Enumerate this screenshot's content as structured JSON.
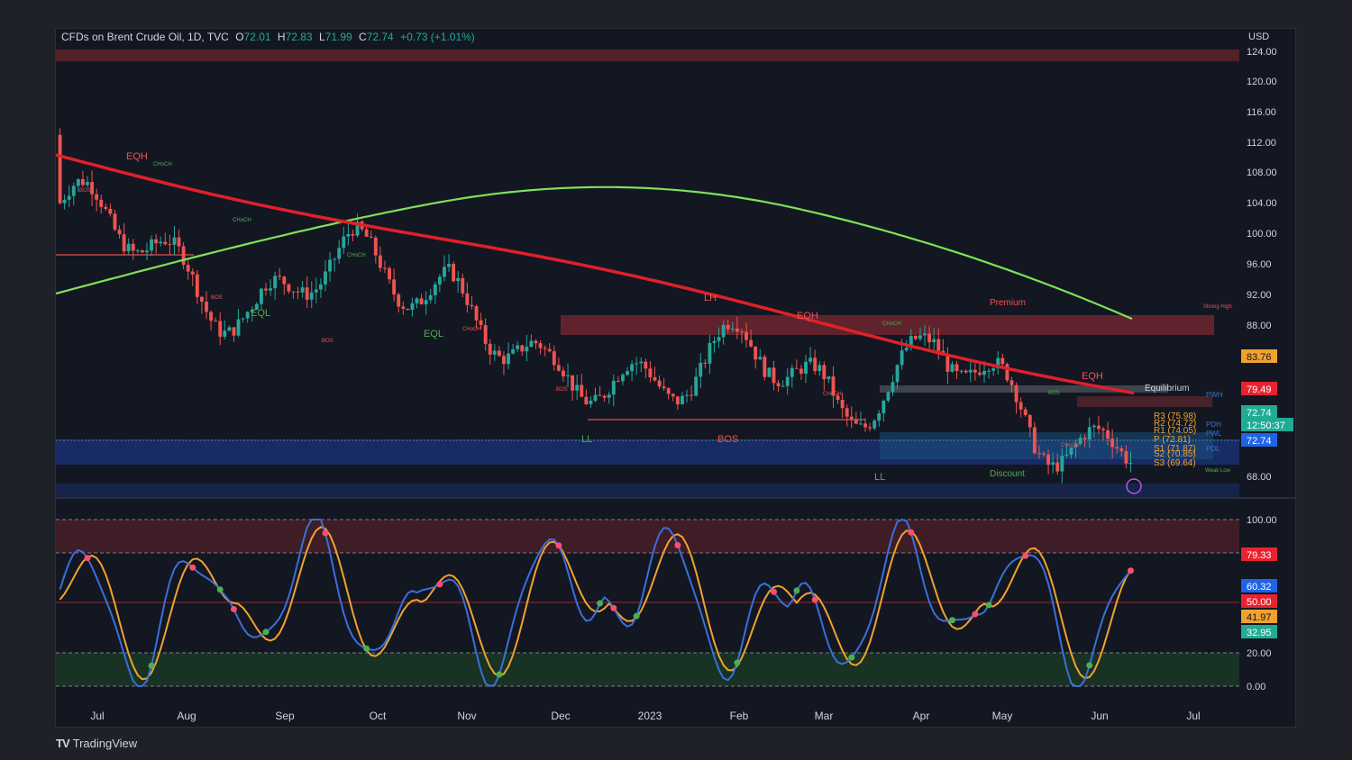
{
  "header": {
    "symbol": "CFDs on Brent Crude Oil, 1D, TVC",
    "open_label": "O",
    "open": "72.01",
    "high_label": "H",
    "high": "72.83",
    "low_label": "L",
    "low": "71.99",
    "close_label": "C",
    "close": "72.74",
    "change": "+0.73 (+1.01%)"
  },
  "price_axis": {
    "currency": "USD",
    "ticks": [
      "124.00",
      "120.00",
      "116.00",
      "112.00",
      "108.00",
      "104.00",
      "100.00",
      "96.00",
      "92.00",
      "88.00",
      "68.00"
    ],
    "tags": [
      {
        "text": "83.76",
        "color": "#f0a22e",
        "textColor": "#131722"
      },
      {
        "text": "79.49",
        "color": "#e8232f",
        "textColor": "#ffffff"
      },
      {
        "text": "72.74",
        "color": "#22ab94",
        "textColor": "#ffffff"
      },
      {
        "text": "12:50:37",
        "color": "#22ab94",
        "textColor": "#ffffff"
      },
      {
        "text": "72.74",
        "color": "#1f63e8",
        "textColor": "#ffffff"
      }
    ]
  },
  "osc_axis": {
    "ticks": [
      "100.00",
      "20.00",
      "0.00"
    ],
    "tags": [
      {
        "text": "79.33",
        "color": "#e8232f",
        "textColor": "#ffffff"
      },
      {
        "text": "60.32",
        "color": "#1f63e8",
        "textColor": "#ffffff"
      },
      {
        "text": "50.00",
        "color": "#e8232f",
        "textColor": "#ffffff"
      },
      {
        "text": "41.97",
        "color": "#f0a22e",
        "textColor": "#131722"
      },
      {
        "text": "32.95",
        "color": "#22ab94",
        "textColor": "#ffffff"
      }
    ]
  },
  "time_axis": [
    "Jul",
    "Aug",
    "Sep",
    "Oct",
    "Nov",
    "Dec",
    "2023",
    "Feb",
    "Mar",
    "Apr",
    "May",
    "Jun",
    "Jul"
  ],
  "annotations": {
    "eqh1": "EQH",
    "eql1": "EQL",
    "eql2": "EQL",
    "ll1": "LL",
    "bos1": "BOS",
    "lh": "LH",
    "eqh2": "EQH",
    "ll2": "LL",
    "eqh3": "EQH",
    "premium": "Premium",
    "equilibrium": "Equilibrium",
    "discount": "Discount",
    "strong_high": "Strong High",
    "weak_low": "Weak Low",
    "pwh": "PWH",
    "pdh": "PDH",
    "pwl": "PWL",
    "pdl": "PDL",
    "choch": "CHoCH",
    "bos_small": "BOS",
    "r3": "R3 (75.98)",
    "r2": "R2 (74.72)",
    "r1": "R1 (74.05)",
    "p": "P (72.81)",
    "s1": "S1 (71.87)",
    "s2": "S2 (70.85)",
    "s3": "S3 (69.64)"
  },
  "branding": {
    "logo": "TV",
    "name": "TradingView"
  },
  "colors": {
    "bull": "#26a69a",
    "bear": "#ef5350",
    "ema_red": "#e0202a",
    "ma_green": "#7fe05a",
    "ma_yellow": "#f0b83a",
    "k_line": "#3a6fd8",
    "d_line": "#f0a22e"
  },
  "chart_data": {
    "type": "candlestick",
    "symbol": "Brent Crude Oil",
    "timeframe": "1D",
    "ylim": [
      66,
      125
    ],
    "price_series_monthly_approx": [
      {
        "month": "Jul",
        "price": 104
      },
      {
        "month": "Aug",
        "price": 97
      },
      {
        "month": "Sep",
        "price": 90
      },
      {
        "month": "Oct",
        "price": 96
      },
      {
        "month": "Nov",
        "price": 94
      },
      {
        "month": "Dec",
        "price": 79
      },
      {
        "month": "2023",
        "price": 82
      },
      {
        "month": "Feb",
        "price": 84
      },
      {
        "month": "Mar",
        "price": 78
      },
      {
        "month": "Apr",
        "price": 85
      },
      {
        "month": "May",
        "price": 74
      },
      {
        "month": "Jun",
        "price": 72.74
      }
    ],
    "oscillator": {
      "name": "Stochastic",
      "ylim": [
        0,
        100
      ],
      "levels": [
        0,
        20,
        50,
        80,
        100
      ]
    }
  }
}
